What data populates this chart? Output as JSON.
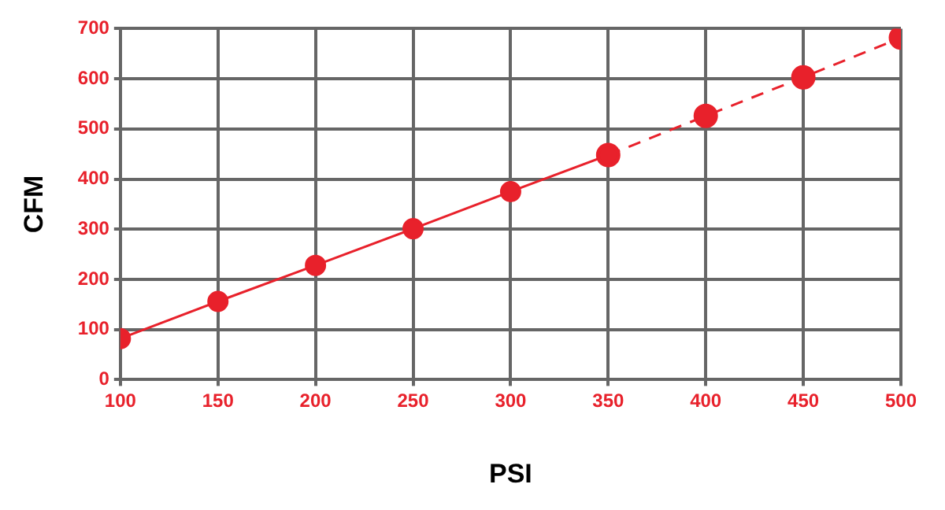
{
  "chart_data": {
    "type": "line",
    "xlabel": "PSI",
    "ylabel": "CFM",
    "xlim": [
      100,
      500
    ],
    "xticks": [
      100,
      150,
      200,
      250,
      300,
      350,
      400,
      450,
      500
    ],
    "ylim": [
      0,
      700
    ],
    "yticks": [
      0,
      100,
      200,
      300,
      400,
      500,
      600,
      700
    ],
    "grid": true,
    "marker": "circle",
    "series": [
      {
        "color": "#e8212b",
        "line_style": "solid",
        "x": [
          100,
          150,
          200,
          250,
          300,
          350
        ],
        "values": [
          82,
          156,
          228,
          301,
          375,
          448
        ]
      },
      {
        "color": "#e8212b",
        "line_style": "dashed",
        "x": [
          350,
          400,
          450,
          500
        ],
        "values": [
          448,
          526,
          603,
          682
        ]
      }
    ]
  }
}
